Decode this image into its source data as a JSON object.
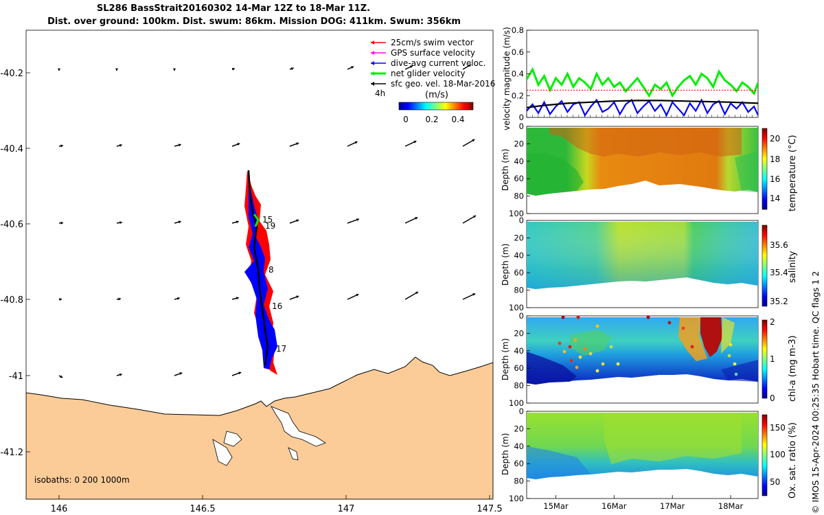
{
  "header": {
    "title_line1": "SL286 BassStrait20160302 14-Mar 12Z to 18-Mar 11Z.",
    "title_line2": "Dist. over ground: 100km. Dist. swum: 86km. Mission DOG: 411km. Swum: 356km"
  },
  "watermark": "© IMOS 15-Apr-2024 00:25:35 Hobart time. QC flags 1  2",
  "map": {
    "x_ticks": [
      "146",
      "146.5",
      "147",
      "147.5"
    ],
    "y_ticks": [
      "-40.2",
      "-40.4",
      "-40.6",
      "-40.8",
      "-41",
      "-41.2"
    ],
    "legend": [
      {
        "label": "25cm/s swim vector",
        "color": "#ff0000"
      },
      {
        "label": "GPS surface velocity",
        "color": "#ff00ff"
      },
      {
        "label": "dive-avg current veloc.",
        "color": "#0000ff"
      },
      {
        "label": "net glider velocity",
        "color": "#00ee00"
      },
      {
        "label": "sfc geo. vel. 18-Mar-2016",
        "color": "#000000"
      }
    ],
    "interval_label": "4h",
    "colorbar_unit": "(m/s)",
    "colorbar_ticks": [
      "0",
      "0.2",
      "0.4"
    ],
    "isobaths_label": "isobaths: 0   200  1000m",
    "day_labels": [
      "15",
      "19",
      "8",
      "16",
      "17"
    ],
    "land_color": "#fccc98",
    "track_colors": {
      "swim": "#ff0000",
      "current": "#0000ff",
      "net": "#00ee00",
      "sfc": "#000000"
    }
  },
  "panels": {
    "velocity": {
      "ylabel": "velocity magnitude (m/s)",
      "yticks": [
        "0",
        "0.2",
        "0.4",
        "0.6",
        "0.8"
      ],
      "ylim": [
        0,
        0.8
      ]
    },
    "depth_ylabel": "Depth (m)",
    "depth_ticks": [
      "0",
      "20",
      "40",
      "60",
      "80",
      "100"
    ],
    "temperature": {
      "cbar_label": "temperature (°C)",
      "cbar_ticks": [
        "20",
        "18",
        "16",
        "14"
      ]
    },
    "salinity": {
      "cbar_label": "salinity",
      "cbar_ticks": [
        "35.6",
        "35.4",
        "35.2"
      ]
    },
    "chla": {
      "cbar_label": "chl-a (mg m-3)",
      "cbar_ticks": [
        "2",
        "1",
        "0"
      ]
    },
    "oxygen": {
      "cbar_label": "Ox. sat. ratio (%)",
      "cbar_ticks": [
        "150",
        "100",
        "50"
      ]
    },
    "time_ticks": [
      "15Mar",
      "16Mar",
      "17Mar",
      "18Mar"
    ]
  },
  "chart_data": [
    {
      "type": "line",
      "title": "",
      "xlabel": "",
      "ylabel": "velocity magnitude (m/s)",
      "ylim": [
        0,
        0.8
      ],
      "x_categories": [
        "15Mar",
        "16Mar",
        "17Mar",
        "18Mar"
      ],
      "series": [
        {
          "name": "net glider velocity",
          "color": "#00ee00",
          "x": [
            14.5,
            14.6,
            14.7,
            14.8,
            14.9,
            15.0,
            15.1,
            15.2,
            15.3,
            15.4,
            15.5,
            15.6,
            15.7,
            15.8,
            15.9,
            16.0,
            16.1,
            16.2,
            16.3,
            16.4,
            16.5,
            16.6,
            16.7,
            16.8,
            16.9,
            17.0,
            17.1,
            17.2,
            17.3,
            17.4,
            17.5,
            17.6,
            17.7,
            17.8,
            17.9,
            18.0,
            18.1,
            18.2,
            18.3,
            18.4,
            18.47
          ],
          "values": [
            0.35,
            0.44,
            0.3,
            0.38,
            0.25,
            0.36,
            0.3,
            0.4,
            0.28,
            0.36,
            0.32,
            0.26,
            0.4,
            0.3,
            0.36,
            0.28,
            0.32,
            0.24,
            0.3,
            0.36,
            0.28,
            0.2,
            0.3,
            0.26,
            0.32,
            0.2,
            0.28,
            0.34,
            0.38,
            0.3,
            0.4,
            0.36,
            0.28,
            0.42,
            0.34,
            0.3,
            0.24,
            0.32,
            0.28,
            0.22,
            0.32
          ]
        },
        {
          "name": "25cm/s swim vector",
          "color": "#ff0000",
          "x": [
            14.5,
            18.47
          ],
          "values": [
            0.25,
            0.25
          ]
        },
        {
          "name": "dive-avg current veloc.",
          "color": "#0000ff",
          "x": [
            14.5,
            14.6,
            14.7,
            14.8,
            14.9,
            15.0,
            15.1,
            15.2,
            15.3,
            15.4,
            15.5,
            15.6,
            15.7,
            15.8,
            15.9,
            16.0,
            16.1,
            16.2,
            16.3,
            16.4,
            16.5,
            16.6,
            16.7,
            16.8,
            16.9,
            17.0,
            17.1,
            17.2,
            17.3,
            17.4,
            17.5,
            17.6,
            17.7,
            17.8,
            17.9,
            18.0,
            18.1,
            18.2,
            18.3,
            18.4,
            18.47
          ],
          "values": [
            0.06,
            0.12,
            0.04,
            0.14,
            0.03,
            0.1,
            0.15,
            0.05,
            0.12,
            0.14,
            0.02,
            0.1,
            0.16,
            0.05,
            0.08,
            0.14,
            0.03,
            0.12,
            0.16,
            0.04,
            0.1,
            0.15,
            0.06,
            0.12,
            0.02,
            0.14,
            0.08,
            0.02,
            0.13,
            0.06,
            0.16,
            0.04,
            0.12,
            0.15,
            0.03,
            0.13,
            0.08,
            0.14,
            0.05,
            0.1,
            0.02
          ]
        },
        {
          "name": "sfc geo. vel. 18-Mar-2016",
          "color": "#000000",
          "x": [
            14.5,
            14.8,
            15.2,
            15.6,
            16.0,
            16.4,
            16.8,
            17.2,
            17.6,
            18.0,
            18.47
          ],
          "values": [
            0.09,
            0.11,
            0.13,
            0.14,
            0.15,
            0.155,
            0.155,
            0.15,
            0.145,
            0.14,
            0.13
          ]
        }
      ]
    },
    {
      "type": "heatmap",
      "ylabel": "Depth (m)",
      "colorbar_label": "temperature (°C)",
      "clim": [
        13,
        21
      ],
      "ylim": [
        0,
        100
      ]
    },
    {
      "type": "heatmap",
      "ylabel": "Depth (m)",
      "colorbar_label": "salinity",
      "clim": [
        35.15,
        35.75
      ],
      "ylim": [
        0,
        100
      ]
    },
    {
      "type": "heatmap",
      "ylabel": "Depth (m)",
      "colorbar_label": "chl-a (mg m-3)",
      "clim": [
        0,
        2
      ],
      "ylim": [
        0,
        100
      ]
    },
    {
      "type": "heatmap",
      "ylabel": "Depth (m)",
      "colorbar_label": "Ox. sat. ratio (%)",
      "clim": [
        20,
        170
      ],
      "ylim": [
        0,
        100
      ]
    }
  ]
}
